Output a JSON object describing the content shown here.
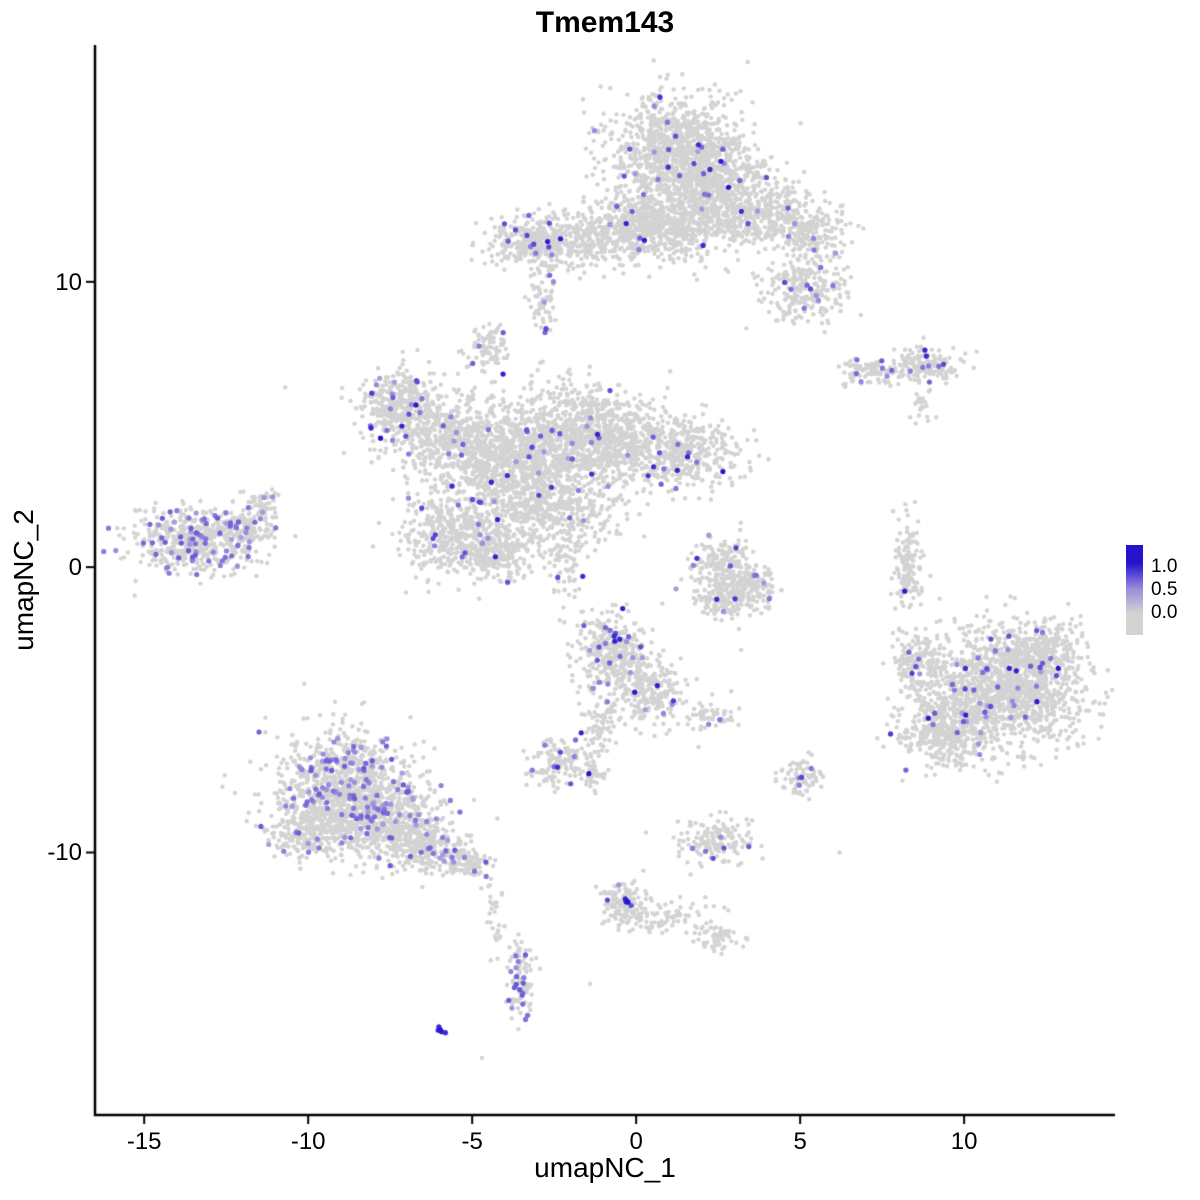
{
  "chart_data": {
    "type": "scatter",
    "title": "Tmem143",
    "xlabel": "umapNC_1",
    "ylabel": "umapNC_2",
    "xlim": [
      -16.5,
      14.6
    ],
    "ylim": [
      -19.2,
      18.3
    ],
    "x_ticks": [
      -15,
      -10,
      -5,
      0,
      5,
      10
    ],
    "y_ticks": [
      -10,
      0,
      10
    ],
    "grid": false,
    "base_color": "#d3d3d3",
    "expr_low_color": "#b3a8e0",
    "expr_high_color": "#2313cd",
    "legend": {
      "position": "right",
      "labels": [
        "1.0",
        "0.5",
        "0.0"
      ],
      "high_color": "#2313cd",
      "mid_color": "#9a8ddc",
      "low_color": "#d3d3d3"
    },
    "clusters": [
      {
        "name": "top",
        "blobs": [
          {
            "cx": 1.2,
            "cy": 14.8,
            "sx": 1.05,
            "sy": 0.85,
            "n": 850,
            "frac": 0.02
          },
          {
            "cx": 2.3,
            "cy": 13.3,
            "sx": 1.0,
            "sy": 0.8,
            "n": 650,
            "frac": 0.02
          },
          {
            "cx": 0.4,
            "cy": 12.4,
            "sx": 0.8,
            "sy": 0.55,
            "n": 300,
            "frac": 0.015
          },
          {
            "cx": 3.9,
            "cy": 12.3,
            "sx": 0.9,
            "sy": 0.5,
            "n": 320,
            "frac": 0.02
          },
          {
            "cx": 5.3,
            "cy": 11.7,
            "sx": 0.5,
            "sy": 0.45,
            "n": 180,
            "frac": 0.04
          },
          {
            "cx": 5.1,
            "cy": 9.8,
            "sx": 0.65,
            "sy": 0.6,
            "n": 260,
            "frac": 0.03
          },
          {
            "cx": 2.3,
            "cy": 14.0,
            "sx": 0.15,
            "sy": 0.15,
            "n": 2,
            "frac": 1,
            "vmin": 0.85,
            "vmax": 1
          }
        ]
      },
      {
        "name": "top-left-band",
        "blobs": [
          {
            "cx": -1.6,
            "cy": 11.4,
            "sx": 1.3,
            "sy": 0.5,
            "n": 450,
            "frac": 0.015
          },
          {
            "cx": -3.2,
            "cy": 11.5,
            "sx": 0.6,
            "sy": 0.4,
            "n": 220,
            "frac": 0.02
          },
          {
            "cx": 0.9,
            "cy": 11.7,
            "sx": 1.0,
            "sy": 0.5,
            "n": 280,
            "frac": 0.015
          },
          {
            "cx": -2.7,
            "cy": 11.4,
            "sx": 0.1,
            "sy": 0.1,
            "n": 1,
            "frac": 1,
            "vmin": 0.8,
            "vmax": 1
          },
          {
            "cx": -2.9,
            "cy": 9.3,
            "sx": 0.25,
            "sy": 0.45,
            "n": 55,
            "frac": 0.02
          }
        ]
      },
      {
        "name": "small-upper-mid",
        "blobs": [
          {
            "cx": -4.5,
            "cy": 7.7,
            "sx": 0.35,
            "sy": 0.35,
            "n": 90,
            "frac": 0.04
          }
        ]
      },
      {
        "name": "central",
        "blobs": [
          {
            "cx": -7.2,
            "cy": 5.6,
            "sx": 0.65,
            "sy": 0.65,
            "n": 380,
            "frac": 0.05
          },
          {
            "cx": -5.8,
            "cy": 4.6,
            "sx": 0.8,
            "sy": 0.7,
            "n": 380,
            "frac": 0.03
          },
          {
            "cx": -4.2,
            "cy": 3.9,
            "sx": 1.0,
            "sy": 0.85,
            "n": 550,
            "frac": 0.02
          },
          {
            "cx": -2.2,
            "cy": 4.6,
            "sx": 1.15,
            "sy": 0.95,
            "n": 750,
            "frac": 0.02
          },
          {
            "cx": -0.5,
            "cy": 4.4,
            "sx": 1.0,
            "sy": 0.75,
            "n": 480,
            "frac": 0.02
          },
          {
            "cx": 1.5,
            "cy": 3.9,
            "sx": 0.85,
            "sy": 0.6,
            "n": 380,
            "frac": 0.025
          },
          {
            "cx": -3.3,
            "cy": 2.4,
            "sx": 0.8,
            "sy": 0.7,
            "n": 380,
            "frac": 0.025
          },
          {
            "cx": -5.4,
            "cy": 1.2,
            "sx": 0.85,
            "sy": 0.75,
            "n": 480,
            "frac": 0.03
          },
          {
            "cx": -4.2,
            "cy": 0.5,
            "sx": 0.6,
            "sy": 0.45,
            "n": 220,
            "frac": 0.025
          },
          {
            "cx": -1.6,
            "cy": 1.9,
            "sx": 0.6,
            "sy": 0.6,
            "n": 140,
            "frac": 0.01
          },
          {
            "cx": -2.1,
            "cy": 0.3,
            "sx": 0.3,
            "sy": 0.7,
            "n": 80,
            "frac": 0.01
          }
        ]
      },
      {
        "name": "left",
        "blobs": [
          {
            "cx": -13.6,
            "cy": 0.9,
            "sx": 0.95,
            "sy": 0.55,
            "n": 520,
            "frac": 0.14,
            "vmin": 0.2,
            "vmax": 0.6
          },
          {
            "cx": -12.0,
            "cy": 1.3,
            "sx": 0.5,
            "sy": 0.4,
            "n": 150,
            "frac": 0.1,
            "vmin": 0.2,
            "vmax": 0.6
          },
          {
            "cx": -11.4,
            "cy": 2.1,
            "sx": 0.3,
            "sy": 0.3,
            "n": 60,
            "frac": 0.05,
            "vmin": 0.2,
            "vmax": 0.5
          }
        ]
      },
      {
        "name": "center-right-hook",
        "blobs": [
          {
            "cx": 2.7,
            "cy": 0.1,
            "sx": 0.5,
            "sy": 0.5,
            "n": 190,
            "frac": 0.01
          },
          {
            "cx": 3.4,
            "cy": -0.7,
            "sx": 0.45,
            "sy": 0.4,
            "n": 180,
            "frac": 0.01
          },
          {
            "cx": 2.5,
            "cy": -1.2,
            "sx": 0.4,
            "sy": 0.3,
            "n": 110,
            "frac": 0.01
          }
        ]
      },
      {
        "name": "right-strip",
        "blobs": [
          {
            "cx": 8.3,
            "cy": 0.2,
            "sx": 0.22,
            "sy": 0.8,
            "n": 140,
            "frac": 0.01
          },
          {
            "cx": 8.25,
            "cy": -0.8,
            "sx": 0.05,
            "sy": 0.05,
            "n": 1,
            "frac": 1,
            "vmin": 0.85,
            "vmax": 1
          }
        ]
      },
      {
        "name": "right-upper",
        "blobs": [
          {
            "cx": 7.3,
            "cy": 6.9,
            "sx": 0.6,
            "sy": 0.22,
            "n": 110,
            "frac": 0.05,
            "vmin": 0.3,
            "vmax": 0.7
          },
          {
            "cx": 8.9,
            "cy": 7.1,
            "sx": 0.55,
            "sy": 0.32,
            "n": 140,
            "frac": 0.06,
            "vmin": 0.3,
            "vmax": 0.8
          },
          {
            "cx": 8.9,
            "cy": 7.4,
            "sx": 0.1,
            "sy": 0.1,
            "n": 2,
            "frac": 1,
            "vmin": 0.8,
            "vmax": 1
          },
          {
            "cx": 8.7,
            "cy": 5.6,
            "sx": 0.15,
            "sy": 0.3,
            "n": 22,
            "frac": 0.05
          }
        ]
      },
      {
        "name": "right-large",
        "blobs": [
          {
            "cx": 11.2,
            "cy": -4.3,
            "sx": 1.25,
            "sy": 1.05,
            "n": 1300,
            "frac": 0.025
          },
          {
            "cx": 9.4,
            "cy": -5.8,
            "sx": 0.7,
            "sy": 0.65,
            "n": 380,
            "frac": 0.025
          },
          {
            "cx": 12.3,
            "cy": -3.1,
            "sx": 0.6,
            "sy": 0.55,
            "n": 280,
            "frac": 0.03
          },
          {
            "cx": 8.6,
            "cy": -3.4,
            "sx": 0.4,
            "sy": 0.5,
            "n": 140,
            "frac": 0.02
          }
        ]
      },
      {
        "name": "center-lower",
        "blobs": [
          {
            "cx": -0.8,
            "cy": -2.9,
            "sx": 0.55,
            "sy": 0.65,
            "n": 330,
            "frac": 0.06
          },
          {
            "cx": -0.5,
            "cy": -2.5,
            "sx": 0.12,
            "sy": 0.12,
            "n": 3,
            "frac": 1,
            "vmin": 0.8,
            "vmax": 1
          },
          {
            "cx": 0.4,
            "cy": -4.3,
            "sx": 0.5,
            "sy": 0.55,
            "n": 240,
            "frac": 0.03
          },
          {
            "cx": -1.1,
            "cy": -5.6,
            "sx": 0.3,
            "sy": 0.7,
            "n": 90,
            "frac": 0.02
          },
          {
            "cx": 2.2,
            "cy": -5.2,
            "sx": 0.4,
            "sy": 0.25,
            "n": 55,
            "frac": 0.02
          }
        ]
      },
      {
        "name": "small-mid-low",
        "blobs": [
          {
            "cx": -2.4,
            "cy": -6.9,
            "sx": 0.42,
            "sy": 0.42,
            "n": 120,
            "frac": 0.05
          },
          {
            "cx": -1.3,
            "cy": -7.3,
            "sx": 0.2,
            "sy": 0.2,
            "n": 35,
            "frac": 0.04
          }
        ]
      },
      {
        "name": "small-right-low",
        "blobs": [
          {
            "cx": 5.1,
            "cy": -7.4,
            "sx": 0.3,
            "sy": 0.33,
            "n": 80,
            "frac": 0.06,
            "vmin": 0.3,
            "vmax": 0.8
          }
        ]
      },
      {
        "name": "small-center-low",
        "blobs": [
          {
            "cx": 2.4,
            "cy": -9.6,
            "sx": 0.5,
            "sy": 0.42,
            "n": 150,
            "frac": 0.06,
            "vmin": 0.25,
            "vmax": 0.7
          }
        ]
      },
      {
        "name": "bottom-left-large",
        "blobs": [
          {
            "cx": -8.8,
            "cy": -7.6,
            "sx": 1.05,
            "sy": 0.9,
            "n": 850,
            "frac": 0.09,
            "vmin": 0.2,
            "vmax": 0.6
          },
          {
            "cx": -7.6,
            "cy": -9.0,
            "sx": 0.9,
            "sy": 0.65,
            "n": 550,
            "frac": 0.08,
            "vmin": 0.2,
            "vmax": 0.6
          },
          {
            "cx": -9.9,
            "cy": -9.2,
            "sx": 0.6,
            "sy": 0.55,
            "n": 280,
            "frac": 0.07,
            "vmin": 0.2,
            "vmax": 0.6
          },
          {
            "cx": -6.3,
            "cy": -9.9,
            "sx": 0.5,
            "sy": 0.45,
            "n": 190,
            "frac": 0.05,
            "vmin": 0.2,
            "vmax": 0.6
          },
          {
            "cx": -5.1,
            "cy": -10.3,
            "sx": 0.4,
            "sy": 0.3,
            "n": 90,
            "frac": 0.05,
            "vmin": 0.2,
            "vmax": 0.6
          },
          {
            "cx": -4.4,
            "cy": -11.7,
            "sx": 0.15,
            "sy": 0.5,
            "n": 22,
            "frac": 0.05
          },
          {
            "cx": -4.2,
            "cy": -13.1,
            "sx": 0.1,
            "sy": 0.4,
            "n": 10,
            "frac": 0
          }
        ]
      },
      {
        "name": "bottom-center",
        "blobs": [
          {
            "cx": -0.35,
            "cy": -11.8,
            "sx": 0.35,
            "sy": 0.4,
            "n": 130,
            "frac": 0.06
          },
          {
            "cx": -0.3,
            "cy": -11.7,
            "sx": 0.07,
            "sy": 0.07,
            "n": 4,
            "frac": 1,
            "vmin": 0.85,
            "vmax": 1
          },
          {
            "cx": 1.0,
            "cy": -12.3,
            "sx": 0.65,
            "sy": 0.28,
            "n": 75,
            "frac": 0
          },
          {
            "cx": 2.4,
            "cy": -13.0,
            "sx": 0.4,
            "sy": 0.25,
            "n": 55,
            "frac": 0
          }
        ]
      },
      {
        "name": "bottom-small-strip",
        "blobs": [
          {
            "cx": -3.5,
            "cy": -14.6,
            "sx": 0.22,
            "sy": 0.7,
            "n": 85,
            "frac": 0.12,
            "vmin": 0.25,
            "vmax": 0.6
          },
          {
            "cx": -3.6,
            "cy": -13.4,
            "sx": 0.12,
            "sy": 0.3,
            "n": 15,
            "frac": 0.05
          }
        ]
      },
      {
        "name": "bottom-tiny",
        "blobs": [
          {
            "cx": -6.0,
            "cy": -16.2,
            "sx": 0.1,
            "sy": 0.08,
            "n": 5,
            "frac": 0.9,
            "vmin": 0.85,
            "vmax": 1
          }
        ]
      }
    ],
    "singles": [
      [
        -10.7,
        6.3
      ],
      [
        -4.7,
        -17.2
      ],
      [
        -1.4,
        -14.6
      ],
      [
        3.2,
        -2.9
      ],
      [
        1.9,
        -6.3
      ],
      [
        0.3,
        -9.3
      ],
      [
        -2.9,
        8.4
      ],
      [
        6.2,
        -10.0
      ]
    ]
  }
}
